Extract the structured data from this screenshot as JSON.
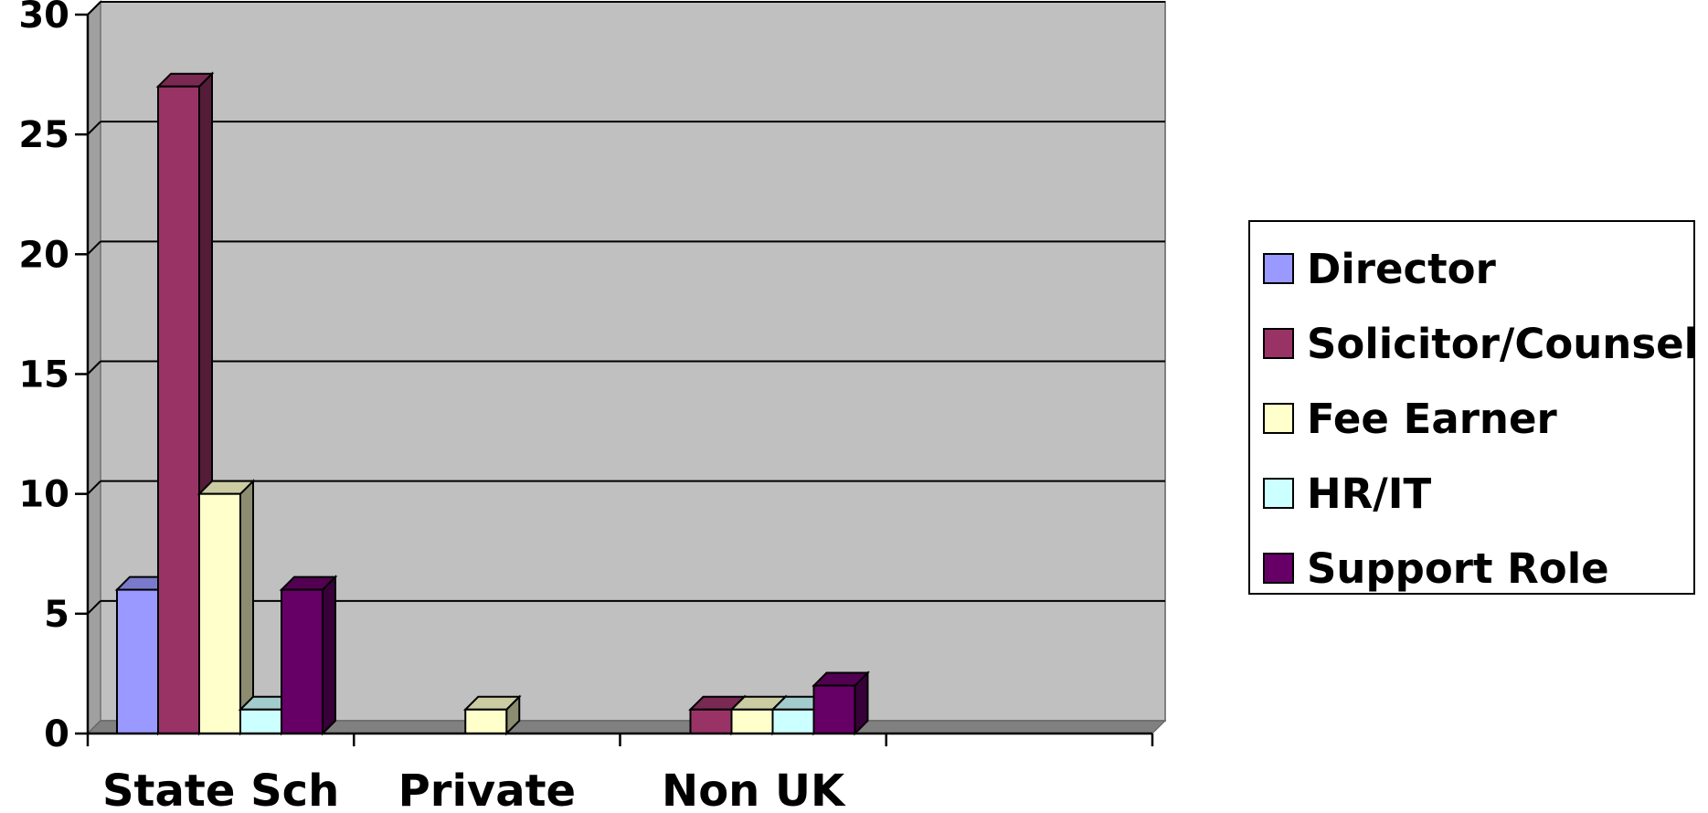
{
  "chart_data": {
    "type": "bar",
    "categories": [
      "State Sch",
      "Private",
      "Non UK",
      ""
    ],
    "series": [
      {
        "name": "Director",
        "values": [
          6,
          0,
          0,
          0
        ],
        "color": "#9999ff"
      },
      {
        "name": "Solicitor/Counsel",
        "values": [
          27,
          0,
          1,
          0
        ],
        "color": "#993366"
      },
      {
        "name": "Fee Earner",
        "values": [
          10,
          1,
          1,
          0
        ],
        "color": "#ffffcc"
      },
      {
        "name": "HR/IT",
        "values": [
          1,
          0,
          1,
          0
        ],
        "color": "#ccffff"
      },
      {
        "name": "Support Role",
        "values": [
          6,
          0,
          2,
          0
        ],
        "color": "#660066"
      }
    ],
    "yticks": [
      "0",
      "5",
      "10",
      "15",
      "20",
      "25",
      "30"
    ],
    "ylim": [
      0,
      30
    ],
    "grid": true,
    "legend_position": "right",
    "background_color": "#c0c0c0"
  }
}
